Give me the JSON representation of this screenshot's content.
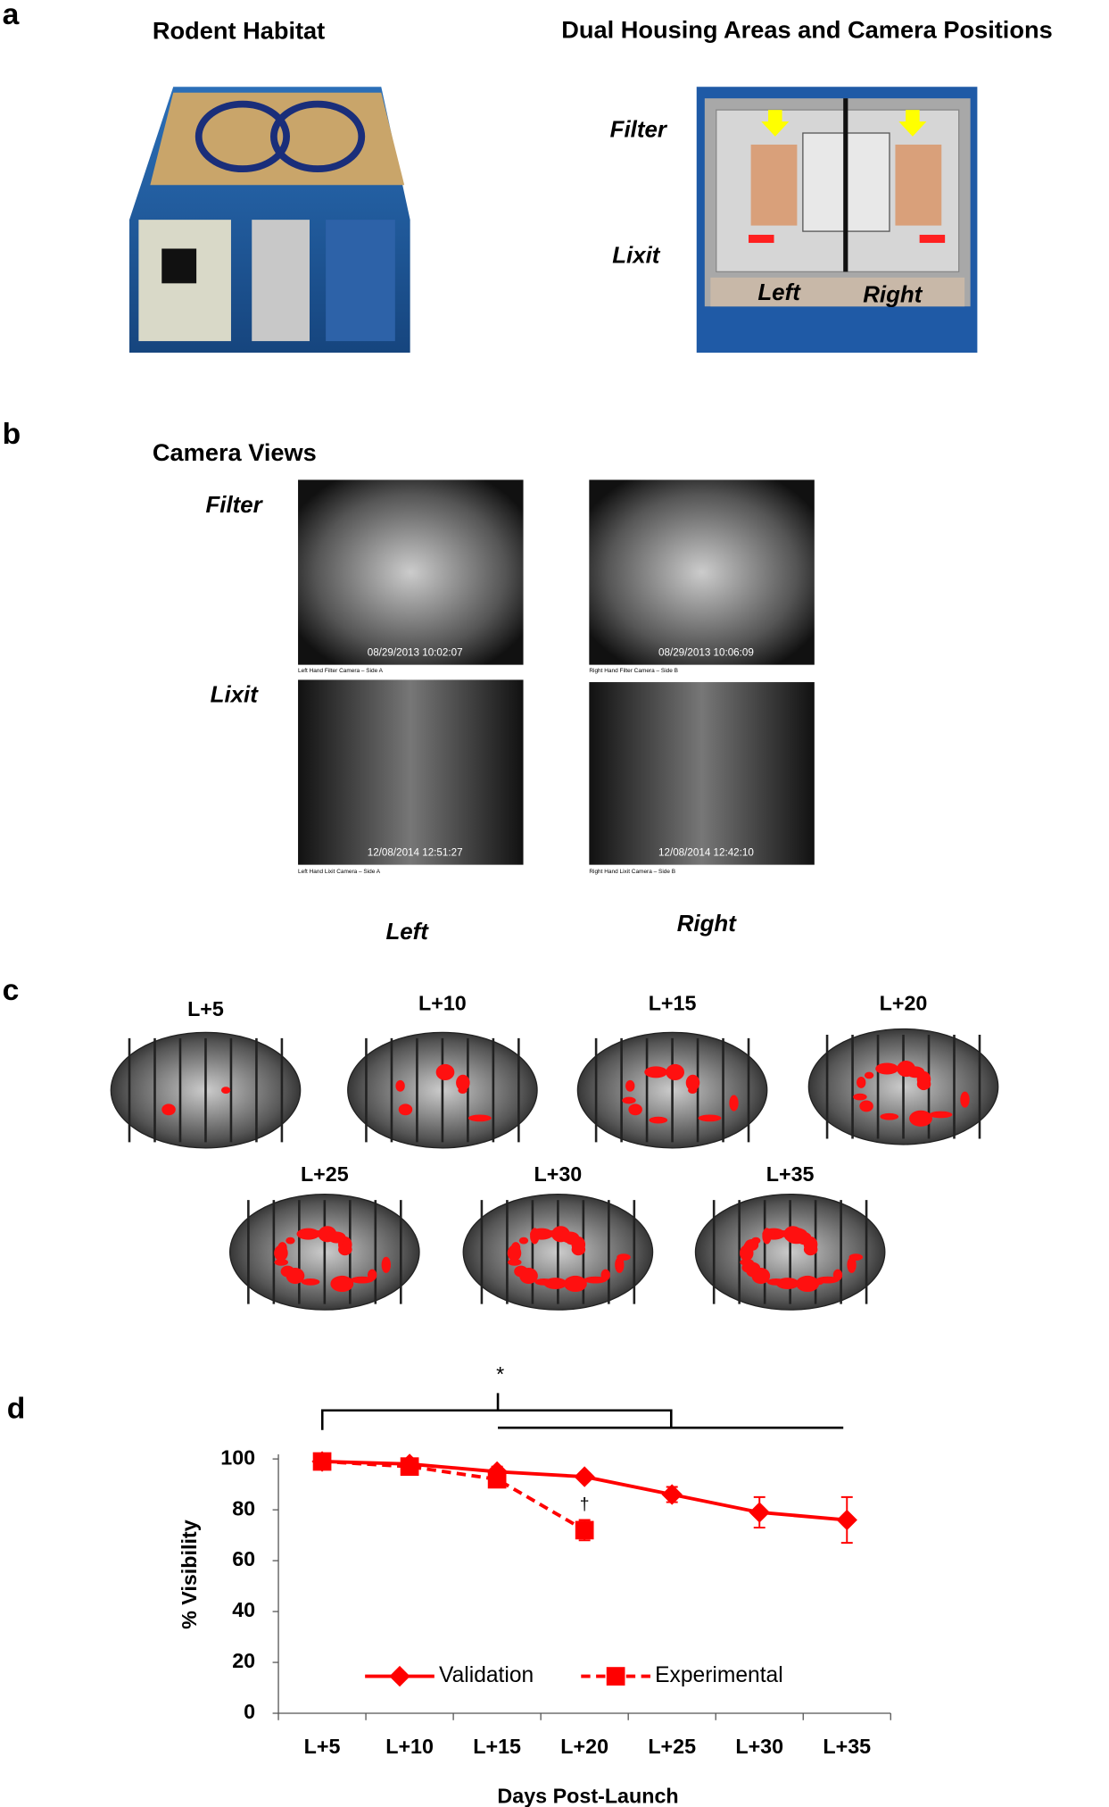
{
  "panels": {
    "a": {
      "label": "a",
      "titles": [
        "Rodent Habitat",
        "Dual Housing Areas and Camera Positions"
      ],
      "photo_labels": [
        "Filter",
        "Lixit",
        "Left",
        "Right"
      ]
    },
    "b": {
      "label": "b",
      "title": "Camera Views",
      "row_labels": [
        "Filter",
        "Lixit"
      ],
      "column_labels": [
        "Left",
        "Right"
      ],
      "timestamps": [
        "08/29/2013 10:02:07",
        "08/29/2013 10:06:09",
        "12/08/2014 12:51:27",
        "12/08/2014 12:42:10"
      ],
      "captions": [
        "Left Hand Filter Camera – Side A",
        "Right Hand Filter Camera – Side B",
        "Left Hand Lixit Camera – Side A",
        "Right Hand Lixit Camera – Side B"
      ]
    },
    "c": {
      "label": "c",
      "days": [
        "L+5",
        "L+10",
        "L+15",
        "L+20",
        "L+25",
        "L+30",
        "L+35"
      ]
    },
    "d": {
      "label": "d"
    }
  },
  "chart_data": {
    "type": "line",
    "x_label": "Days Post-Launch",
    "y_label": "% Visibility",
    "categories": [
      "L+5",
      "L+10",
      "L+15",
      "L+20",
      "L+25",
      "L+30",
      "L+35"
    ],
    "series": [
      {
        "name": "Validation",
        "color": "#ff0000",
        "marker": "diamond",
        "dashed": false,
        "values": [
          99,
          98,
          95,
          93,
          86,
          79,
          76
        ],
        "errors": [
          1,
          2,
          2,
          1,
          3,
          6,
          9
        ]
      },
      {
        "name": "Experimental",
        "color": "#ff0000",
        "marker": "square",
        "dashed": true,
        "values": [
          99,
          97,
          92,
          72,
          null,
          null,
          null
        ],
        "errors": [
          1,
          2,
          3,
          4,
          null,
          null,
          null
        ]
      }
    ],
    "ylim": [
      0,
      100
    ],
    "yticks": [
      0,
      20,
      40,
      60,
      80,
      100
    ],
    "grid": false,
    "legend": "lower center",
    "annotations": [
      "*",
      "†"
    ]
  }
}
